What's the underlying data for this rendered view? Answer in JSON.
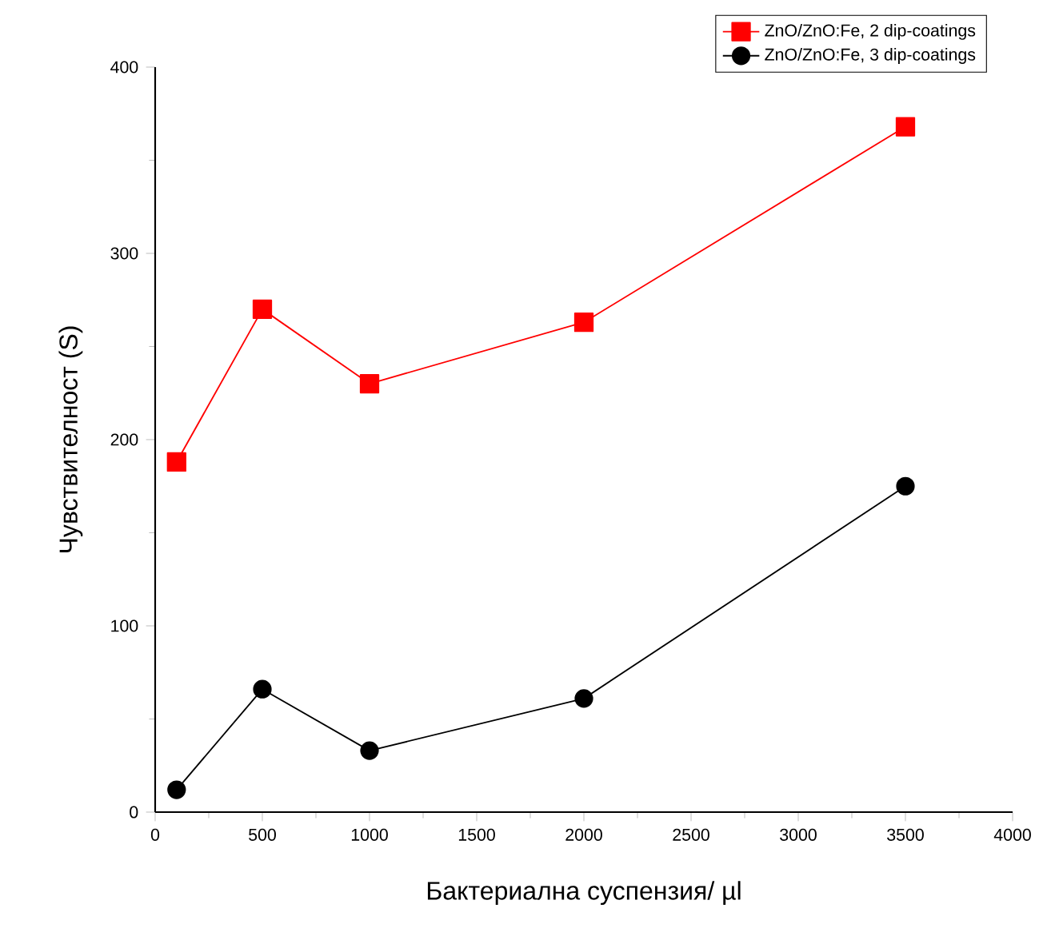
{
  "chart_data": {
    "type": "line",
    "xlabel": "Бактериална суспензия/ µl",
    "ylabel": "Чувствителност (S)",
    "x": [
      100,
      500,
      1000,
      2000,
      3500
    ],
    "series": [
      {
        "name": "ZnO/ZnO:Fe, 2 dip-coatings",
        "color": "#ff0000",
        "marker": "square",
        "values": [
          188,
          270,
          230,
          263,
          368
        ]
      },
      {
        "name": "ZnO/ZnO:Fe, 3 dip-coatings",
        "color": "#000000",
        "marker": "circle",
        "values": [
          12,
          66,
          33,
          61,
          175
        ]
      }
    ],
    "xlim": [
      0,
      4000
    ],
    "xticks": [
      0,
      500,
      1000,
      1500,
      2000,
      2500,
      3000,
      3500,
      4000
    ],
    "ylim": [
      0,
      400
    ],
    "yticks": [
      0,
      100,
      200,
      300,
      400
    ],
    "grid": false,
    "legend": "top right",
    "line_style": "solid"
  }
}
